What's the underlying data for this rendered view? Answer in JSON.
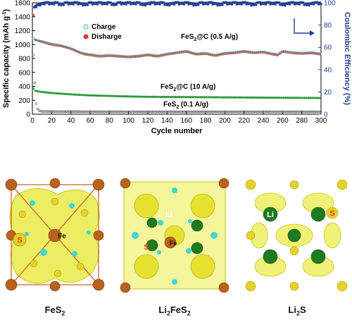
{
  "chart_data": {
    "type": "scatter",
    "xlabel": "Cycle number",
    "ylabel_left": "Specific capacity (mAh g",
    "ylabel_left_sup": "-1",
    "ylabel_left_end": ")",
    "ylabel_right": "Coulombic Efficiency (%)",
    "xlim": [
      0,
      300
    ],
    "ylim_left": [
      0,
      1600
    ],
    "ylim_right": [
      0,
      100
    ],
    "x_ticks": [
      0,
      20,
      40,
      60,
      80,
      100,
      120,
      140,
      160,
      180,
      200,
      220,
      240,
      260,
      280,
      300
    ],
    "y_ticks_left": [
      0,
      200,
      400,
      600,
      800,
      1000,
      1200,
      1400,
      1600
    ],
    "y_ticks_right": [
      0,
      20,
      40,
      60,
      80,
      100
    ],
    "legend": [
      {
        "label": "Charge",
        "marker": "open-circle",
        "color": "#3fbfbf"
      },
      {
        "label": "Disharge",
        "marker": "filled-circle",
        "color": "#e33b2e"
      }
    ],
    "annotations": [
      {
        "base": "FeS",
        "sub": "2",
        "rest": "@C (0.5 A/g)"
      },
      {
        "base": "FeS",
        "sub": "2",
        "rest": "@C (10 A/g)"
      },
      {
        "base": "FeS",
        "sub": "2",
        "rest": " (0.1 A/g)"
      }
    ],
    "series": [
      {
        "name": "FeS2@C (0.5 A/g) discharge",
        "axis": "left",
        "color": "#e33b2e",
        "x": [
          1,
          2,
          3,
          5,
          10,
          15,
          20,
          25,
          30,
          35,
          40,
          45,
          50,
          55,
          60,
          70,
          80,
          90,
          100,
          110,
          120,
          130,
          140,
          150,
          160,
          170,
          180,
          190,
          200,
          210,
          220,
          230,
          240,
          250,
          255,
          260,
          270,
          280,
          290,
          300
        ],
        "y": [
          1420,
          1100,
          1070,
          1060,
          1040,
          1020,
          1000,
          990,
          980,
          960,
          940,
          910,
          880,
          860,
          850,
          830,
          840,
          830,
          820,
          830,
          850,
          830,
          860,
          880,
          900,
          860,
          870,
          840,
          870,
          880,
          900,
          880,
          890,
          860,
          850,
          900,
          880,
          870,
          880,
          860
        ]
      },
      {
        "name": "FeS2@C (0.5 A/g) charge",
        "axis": "left",
        "color": "#3fbfbf",
        "x": [
          1,
          2,
          3,
          5,
          10,
          15,
          20,
          25,
          30,
          35,
          40,
          45,
          50,
          55,
          60,
          70,
          80,
          90,
          100,
          110,
          120,
          130,
          140,
          150,
          160,
          170,
          180,
          190,
          200,
          210,
          220,
          230,
          240,
          250,
          255,
          260,
          270,
          280,
          290,
          300
        ],
        "y": [
          1080,
          1070,
          1060,
          1050,
          1035,
          1015,
          998,
          988,
          975,
          955,
          935,
          905,
          875,
          857,
          847,
          827,
          837,
          827,
          817,
          828,
          847,
          828,
          857,
          877,
          897,
          857,
          867,
          838,
          867,
          877,
          897,
          877,
          887,
          857,
          848,
          897,
          877,
          867,
          877,
          857
        ]
      },
      {
        "name": "FeS2@C (10 A/g)",
        "axis": "left",
        "color": "#2e9a3a",
        "x": [
          1,
          2,
          3,
          5,
          10,
          20,
          30,
          40,
          60,
          80,
          100,
          120,
          140,
          160,
          180,
          200,
          220,
          240,
          260,
          280,
          300
        ],
        "y": [
          370,
          350,
          340,
          330,
          320,
          305,
          295,
          285,
          270,
          262,
          255,
          250,
          248,
          246,
          244,
          242,
          240,
          238,
          236,
          235,
          233
        ]
      },
      {
        "name": "FeS2 (0.1 A/g)",
        "axis": "left",
        "color": "#555555",
        "x": [
          1,
          2,
          3,
          4,
          5,
          6,
          8,
          10,
          20,
          40,
          60,
          80,
          100,
          120,
          140,
          160,
          180,
          200,
          220,
          240,
          260,
          280,
          300
        ],
        "y": [
          850,
          600,
          300,
          150,
          90,
          60,
          45,
          40,
          38,
          37,
          36,
          36,
          35,
          35,
          35,
          35,
          35,
          35,
          35,
          35,
          35,
          35,
          35
        ]
      },
      {
        "name": "Coulombic efficiency",
        "axis": "right",
        "color": "#1f3f93",
        "x": [
          2,
          6,
          10,
          15,
          20,
          25,
          30,
          35,
          40,
          45,
          50,
          55,
          60,
          65,
          70,
          75,
          80,
          85,
          90,
          95,
          100,
          105,
          110,
          115,
          120,
          125,
          130,
          135,
          140,
          145,
          150,
          155,
          160,
          165,
          170,
          175,
          180,
          185,
          190,
          195,
          200,
          205,
          210,
          215,
          220,
          225,
          230,
          235,
          240,
          245,
          250,
          255,
          260,
          265,
          270,
          275,
          280,
          285,
          290,
          295,
          300
        ],
        "y": [
          96,
          98,
          99,
          100,
          99,
          100,
          98,
          100,
          99,
          100,
          99,
          98,
          100,
          99,
          100,
          99,
          100,
          98,
          100,
          99,
          100,
          99,
          100,
          98,
          99,
          100,
          99,
          100,
          98,
          99,
          100,
          99,
          100,
          99,
          98,
          100,
          99,
          100,
          99,
          98,
          100,
          99,
          100,
          99,
          100,
          99,
          98,
          100,
          99,
          100,
          99,
          100,
          98,
          99,
          100,
          99,
          100,
          98,
          99,
          100,
          99
        ]
      }
    ]
  },
  "panels": {
    "captions": [
      {
        "base": "FeS",
        "sub": "2",
        "pre": "",
        "mid": ""
      },
      {
        "pre": "Li",
        "mid": "2",
        "base": "FeS",
        "sub": "2"
      },
      {
        "pre": "Li",
        "mid": "2",
        "base": "S",
        "sub": ""
      }
    ],
    "atom_labels": {
      "s": "S",
      "fe": "Fe",
      "li": "Li"
    },
    "colors": {
      "fe": "#b8621c",
      "s": "#e6d02a",
      "li": "#1f7a1f",
      "density": "#e8e838",
      "cyan": "#3fd6d6",
      "label_red": "#e8461e"
    }
  }
}
